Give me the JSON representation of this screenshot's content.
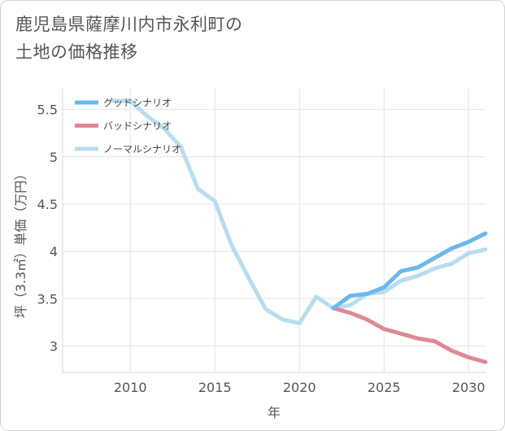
{
  "title_lines": [
    "鹿児島県薩摩川内市永利町の",
    "土地の価格推移"
  ],
  "chart_data": {
    "type": "line",
    "xlabel": "年",
    "ylabel": "坪（3.3㎡）単価（万円）",
    "xlim": [
      2006,
      2031
    ],
    "ylim": [
      2.72,
      5.72
    ],
    "xticks": [
      2010,
      2015,
      2020,
      2025,
      2030
    ],
    "yticks": [
      3,
      3.5,
      4,
      4.5,
      5,
      5.5
    ],
    "grid": true,
    "legend_position": "top-left",
    "series": [
      {
        "name": "グッドシナリオ",
        "color": "#6bb8ec",
        "x": [
          2022,
          2023,
          2024,
          2025,
          2026,
          2027,
          2028,
          2029,
          2030,
          2031
        ],
        "y": [
          3.4,
          3.53,
          3.55,
          3.62,
          3.79,
          3.83,
          3.93,
          4.03,
          4.1,
          4.19
        ]
      },
      {
        "name": "バッドシナリオ",
        "color": "#dd8a94",
        "x": [
          2022,
          2023,
          2024,
          2025,
          2026,
          2027,
          2028,
          2029,
          2030,
          2031
        ],
        "y": [
          3.4,
          3.35,
          3.28,
          3.18,
          3.13,
          3.08,
          3.05,
          2.95,
          2.88,
          2.83
        ]
      },
      {
        "name": "ノーマルシナリオ",
        "color": "#b8dded",
        "x": [
          2009,
          2010,
          2011,
          2012,
          2013,
          2014,
          2015,
          2016,
          2017,
          2018,
          2019,
          2020,
          2021,
          2022,
          2023,
          2024,
          2025,
          2026,
          2027,
          2028,
          2029,
          2030,
          2031
        ],
        "y": [
          5.59,
          5.59,
          5.43,
          5.3,
          5.1,
          4.66,
          4.53,
          4.06,
          3.72,
          3.39,
          3.28,
          3.24,
          3.52,
          3.4,
          3.43,
          3.55,
          3.57,
          3.69,
          3.74,
          3.82,
          3.87,
          3.98,
          4.02
        ]
      }
    ]
  }
}
